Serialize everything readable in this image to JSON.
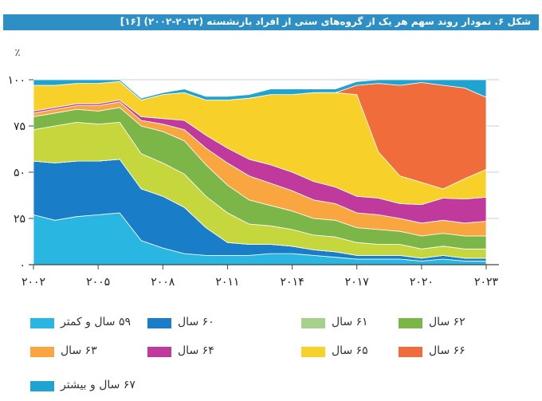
{
  "title": "شکل ۶. نمودار روند سهم هر یک از گروه‌های سنی از افراد بازنشسته (۲۰۲۳-۲۰۰۲) [۱۶]",
  "chart_data": {
    "type": "area",
    "stacked": true,
    "title": "شکل ۶. نمودار روند سهم هر یک از گروه‌های سنی از افراد بازنشسته (۲۰۲۳-۲۰۰۲) [۱۶]",
    "ylabel": "٪",
    "xlim": [
      2002,
      2023
    ],
    "ylim": [
      0,
      100
    ],
    "x": [
      2002,
      2003,
      2004,
      2005,
      2006,
      2007,
      2008,
      2009,
      2010,
      2011,
      2012,
      2013,
      2014,
      2015,
      2016,
      2017,
      2018,
      2019,
      2020,
      2021,
      2022,
      2023
    ],
    "x_ticks": [
      {
        "value": 2002,
        "label": "۲۰۰۲"
      },
      {
        "value": 2005,
        "label": "۲۰۰۵"
      },
      {
        "value": 2008,
        "label": "۲۰۰۸"
      },
      {
        "value": 2011,
        "label": "۲۰۱۱"
      },
      {
        "value": 2014,
        "label": "۲۰۱۴"
      },
      {
        "value": 2017,
        "label": "۲۰۱۷"
      },
      {
        "value": 2020,
        "label": "۲۰۲۰"
      },
      {
        "value": 2023,
        "label": "۲۰۲۳"
      }
    ],
    "y_ticks": [
      {
        "value": 0,
        "label": "۰"
      },
      {
        "value": 25,
        "label": "۲۵"
      },
      {
        "value": 50,
        "label": "۵۰"
      },
      {
        "value": 75,
        "label": "۷۵"
      },
      {
        "value": 100,
        "label": "۱۰۰"
      }
    ],
    "series": [
      {
        "key": "s59",
        "name": "۵۹ سال و کمتر",
        "color": "#29b6e0",
        "values": [
          27,
          24,
          26,
          27,
          28,
          13,
          9,
          6,
          5,
          5,
          5,
          6,
          6,
          5,
          4,
          3,
          3,
          3,
          2,
          3,
          2,
          2
        ]
      },
      {
        "key": "s60",
        "name": "۶۰ سال",
        "color": "#1a7dc8",
        "values": [
          29,
          31,
          30,
          29,
          29,
          28,
          28,
          25,
          15,
          7,
          6,
          5,
          4,
          3,
          3,
          2,
          2,
          2,
          1.5,
          2,
          1.5,
          1.5
        ]
      },
      {
        "key": "s61",
        "name": "۶۱ سال",
        "color": "#a8d08d",
        "values": [
          0,
          0,
          0,
          0,
          0,
          0,
          0,
          0,
          0,
          0,
          0,
          0,
          0,
          0,
          0,
          0,
          0,
          0,
          0,
          0,
          0,
          0
        ]
      },
      {
        "key": "s62",
        "name": "۶۲ سال",
        "color": "#7cb648",
        "values": [
          0,
          0,
          0,
          0,
          0,
          0,
          0,
          0,
          0,
          0,
          0,
          0,
          0,
          0,
          0,
          0,
          0,
          0,
          0,
          0,
          0,
          0
        ]
      },
      {
        "key": "s61x",
        "name": "_",
        "color": "#c6d63d",
        "values": [
          17,
          20,
          21,
          20,
          20,
          19,
          18,
          18,
          17,
          16,
          11,
          10,
          9,
          8,
          8,
          7,
          6,
          6,
          5,
          5,
          5,
          5
        ]
      },
      {
        "key": "s62x",
        "name": "_",
        "color": "#7cb648",
        "values": [
          7,
          7,
          7,
          7,
          8,
          15,
          17,
          18,
          17,
          15,
          13,
          11,
          10,
          9,
          9,
          8,
          8,
          7,
          7,
          7,
          7,
          7
        ]
      },
      {
        "key": "s63",
        "name": "۶۳ سال",
        "color": "#f9a640",
        "values": [
          2,
          2,
          2,
          3,
          3,
          3,
          4,
          6,
          9,
          12,
          13,
          12,
          11,
          10,
          9,
          8,
          8,
          7,
          7,
          7,
          7,
          8
        ]
      },
      {
        "key": "s64",
        "name": "۶۴ سال",
        "color": "#c0399c",
        "values": [
          1,
          1,
          1,
          1,
          1,
          2,
          3,
          5,
          7,
          8,
          9,
          10,
          10,
          10,
          9,
          9,
          9,
          8,
          10,
          12,
          13,
          13
        ]
      },
      {
        "key": "s65",
        "name": "۶۵ سال",
        "color": "#f7d12a",
        "values": [
          14,
          12,
          11,
          11,
          10,
          9,
          13,
          15,
          19,
          26,
          33,
          38,
          42,
          48,
          51,
          55,
          25,
          15,
          12,
          5,
          11,
          15
        ]
      },
      {
        "key": "s66",
        "name": "۶۶ سال",
        "color": "#f06c3b",
        "values": [
          0,
          0,
          0,
          0,
          0,
          0,
          0,
          0,
          0,
          0,
          0,
          0,
          0,
          0,
          0,
          5,
          37,
          49,
          54,
          56,
          49,
          39
        ]
      },
      {
        "key": "s67",
        "name": "۶۷ سال و بیشتر",
        "color": "#1fa3d0",
        "values": [
          3,
          3,
          2,
          2,
          1,
          1,
          1,
          2,
          2,
          2,
          2,
          3,
          3,
          2,
          2,
          2,
          2,
          3,
          4,
          3,
          5,
          10
        ]
      }
    ],
    "legend": [
      {
        "key": "s59",
        "label": "۵۹ سال و کمتر",
        "color": "#29b6e0"
      },
      {
        "key": "s60",
        "label": "۶۰ سال",
        "color": "#1a7dc8"
      },
      {
        "key": "s61",
        "label": "۶۱ سال",
        "color": "#a8d08d"
      },
      {
        "key": "s62",
        "label": "۶۲ سال",
        "color": "#7cb648"
      },
      {
        "key": "s63",
        "label": "۶۳ سال",
        "color": "#f9a640"
      },
      {
        "key": "s64",
        "label": "۶۴ سال",
        "color": "#c0399c"
      },
      {
        "key": "s65",
        "label": "۶۵ سال",
        "color": "#f7d12a"
      },
      {
        "key": "s66",
        "label": "۶۶ سال",
        "color": "#f06c3b"
      },
      {
        "key": "s67",
        "label": "۶۷ سال و بیشتر",
        "color": "#1fa3d0"
      }
    ]
  }
}
